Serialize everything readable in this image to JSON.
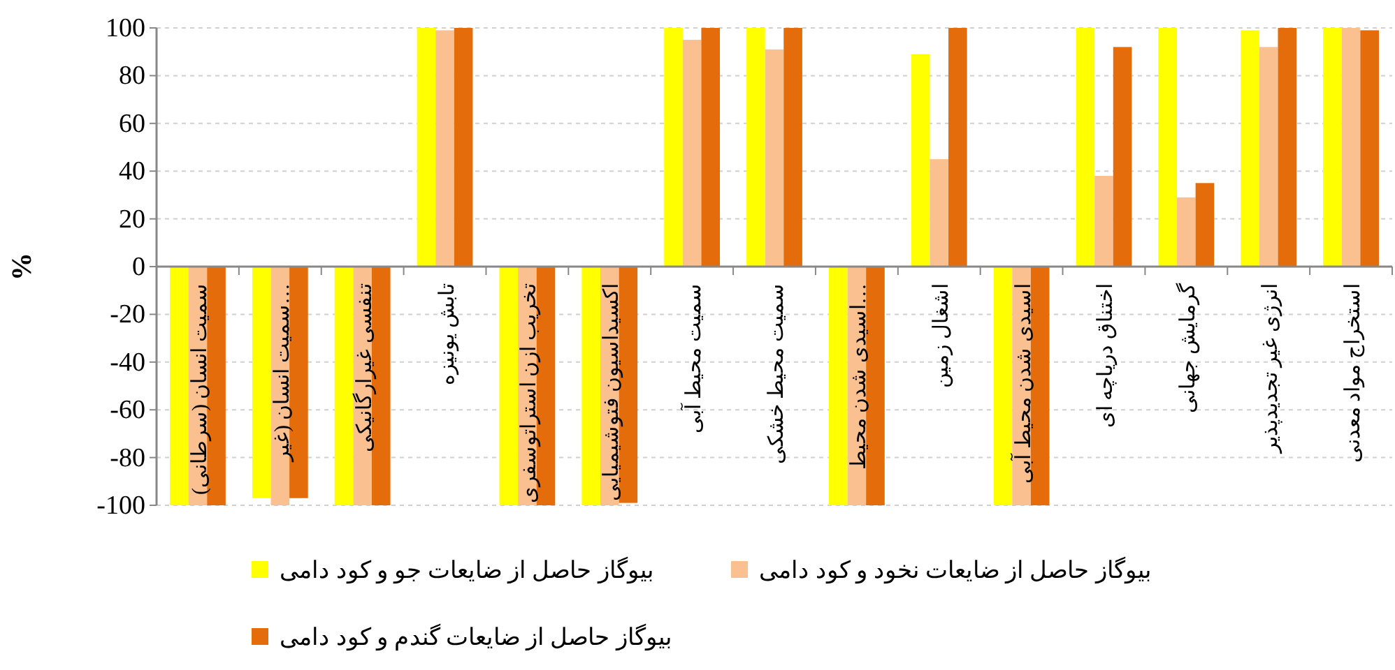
{
  "chart_data": {
    "type": "bar",
    "ylabel": "%",
    "ylim": [
      -100,
      100
    ],
    "yticks": [
      -100,
      -80,
      -60,
      -40,
      -20,
      0,
      20,
      40,
      60,
      80,
      100
    ],
    "grid": "y",
    "legend": "bottom",
    "categories": [
      "سمیت انسان (سرطانی)",
      "سمیت انسان (غیر…",
      "تنفسی غیرارگانیکی",
      "تابش یونیزه",
      "تخریب ازن استراتوسفری",
      "اکسیداسیون فتوشیمیایی",
      "سمیت محیط آبی",
      "سمیت محیط خشکی",
      "اسیدی شدن محیط…",
      "اشغال زمین",
      "اسیدی شدن محیط آبی",
      "اختناق دریاچه ای",
      "گرمایش جهانی",
      "انرژی غیر تجدیدپذیر",
      "استخراج مواد معدنی"
    ],
    "series": [
      {
        "name": "بیوگاز حاصل از ضایعات جو و کود دامی",
        "color": "#ffff00",
        "values": [
          -100,
          -97,
          -100,
          100,
          -100,
          -100,
          100,
          100,
          -100,
          89,
          -100,
          100,
          100,
          99,
          100
        ]
      },
      {
        "name": "بیوگاز حاصل از ضایعات نخود و کود دامی",
        "color": "#fac090",
        "values": [
          -100,
          -100,
          -100,
          99,
          -100,
          -100,
          95,
          91,
          -100,
          45,
          -100,
          38,
          29,
          92,
          100
        ]
      },
      {
        "name": "بیوگاز حاصل از ضایعات گندم و کود دامی",
        "color": "#e46c0a",
        "values": [
          -100,
          -97,
          -100,
          100,
          -100,
          -99,
          100,
          100,
          -100,
          100,
          -100,
          92,
          35,
          100,
          99
        ]
      }
    ]
  }
}
